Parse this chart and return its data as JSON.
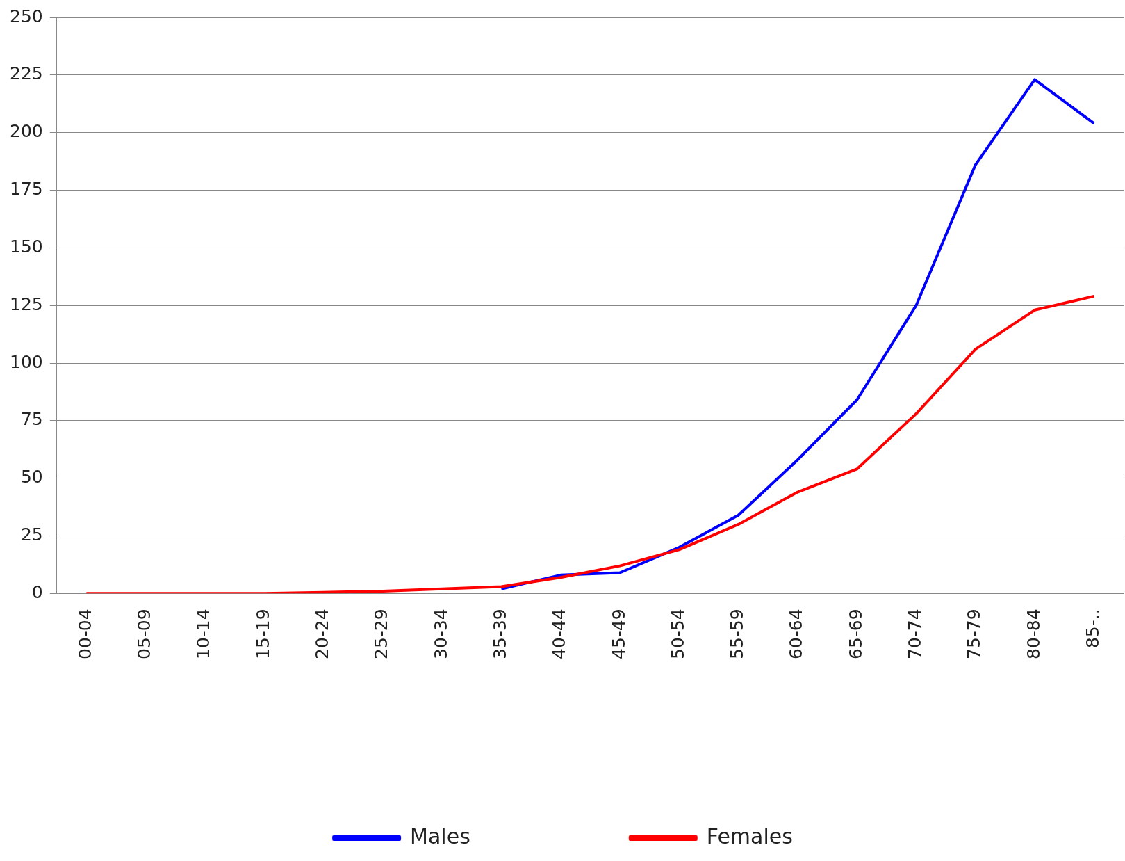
{
  "chart_data": {
    "type": "line",
    "categories": [
      "00-04",
      "05-09",
      "10-14",
      "15-19",
      "20-24",
      "25-29",
      "30-34",
      "35-39",
      "40-44",
      "45-49",
      "50-54",
      "55-59",
      "60-64",
      "65-69",
      "70-74",
      "75-79",
      "80-84",
      "85-.."
    ],
    "series": [
      {
        "name": "Males",
        "color": "#0000ff",
        "values": [
          null,
          null,
          null,
          null,
          null,
          null,
          null,
          2,
          8,
          9,
          20,
          34,
          58,
          84,
          125,
          186,
          223,
          204
        ]
      },
      {
        "name": "Females",
        "color": "#ff0000",
        "values": [
          0,
          0,
          0,
          0,
          0.5,
          1,
          2,
          3,
          7,
          12,
          19,
          30,
          44,
          54,
          78,
          106,
          123,
          129
        ]
      }
    ],
    "ylim": [
      0,
      250
    ],
    "yticks": [
      0,
      25,
      50,
      75,
      100,
      125,
      150,
      175,
      200,
      225,
      250
    ],
    "grid": "y",
    "legend": "bottom",
    "marker": "none",
    "line_style": "solid"
  }
}
